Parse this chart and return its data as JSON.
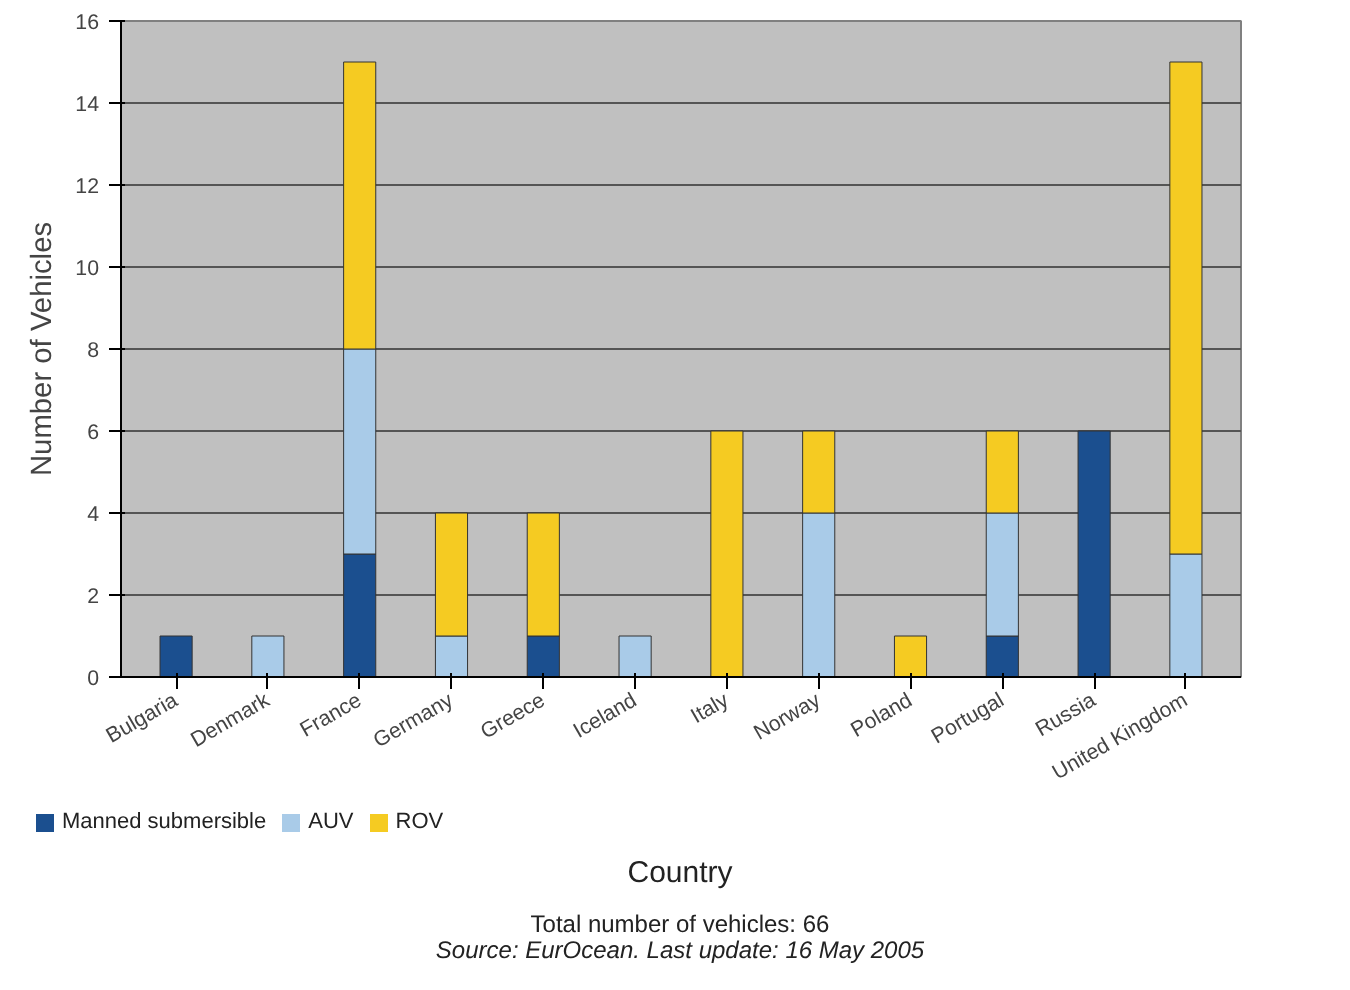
{
  "chart_data": {
    "type": "bar",
    "stacked": true,
    "xlabel": "Country",
    "ylabel": "Number of Vehicles",
    "categories": [
      "Bulgaria",
      "Denmark",
      "France",
      "Germany",
      "Greece",
      "Iceland",
      "Italy",
      "Norway",
      "Poland",
      "Portugal",
      "Russia",
      "United Kingdom"
    ],
    "series": [
      {
        "name": "Manned submersible",
        "color": "#1b4f8f",
        "values": [
          1,
          0,
          3,
          0,
          1,
          0,
          0,
          0,
          0,
          1,
          6,
          0
        ]
      },
      {
        "name": "AUV",
        "color": "#a9cbe8",
        "values": [
          0,
          1,
          5,
          1,
          0,
          1,
          0,
          4,
          0,
          3,
          0,
          3
        ]
      },
      {
        "name": "ROV",
        "color": "#f5cb22",
        "values": [
          0,
          0,
          7,
          3,
          3,
          0,
          6,
          2,
          1,
          2,
          0,
          12
        ]
      }
    ],
    "ylim": [
      0,
      16
    ],
    "yticks": [
      0,
      2,
      4,
      6,
      8,
      10,
      12,
      14,
      16
    ],
    "grid": "y",
    "legend": "bottom",
    "annotations": [
      "Total number of vehicles: 66",
      "Source: EurOcean. Last update: 16 May 2005"
    ]
  }
}
